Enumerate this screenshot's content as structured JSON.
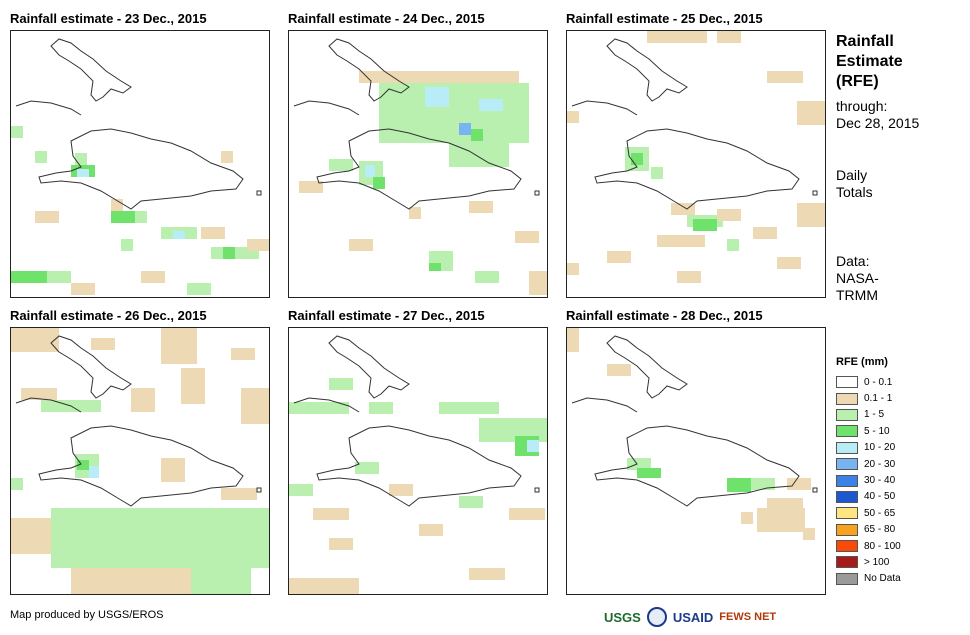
{
  "panels": [
    {
      "title": "Rainfall estimate - 23 Dec., 2015"
    },
    {
      "title": "Rainfall estimate - 24 Dec., 2015"
    },
    {
      "title": "Rainfall estimate - 25 Dec., 2015"
    },
    {
      "title": "Rainfall estimate - 26 Dec., 2015"
    },
    {
      "title": "Rainfall estimate - 27 Dec., 2015"
    },
    {
      "title": "Rainfall estimate - 28 Dec., 2015"
    }
  ],
  "side": {
    "title_lines": [
      "Rainfall",
      "Estimate",
      "(RFE)"
    ],
    "through_lines": [
      "through:",
      "Dec 28, 2015"
    ],
    "totals_lines": [
      "Daily",
      "Totals"
    ],
    "source_lines": [
      "Data:",
      "NASA-",
      "TRMM"
    ]
  },
  "legend": {
    "title": "RFE (mm)",
    "items": [
      {
        "label": "0 - 0.1",
        "color": "#ffffff"
      },
      {
        "label": "0.1 - 1",
        "color": "#eed9b5"
      },
      {
        "label": "1 - 5",
        "color": "#b9f0b0"
      },
      {
        "label": "5 - 10",
        "color": "#6ee26a"
      },
      {
        "label": "10 - 20",
        "color": "#b8ecf6"
      },
      {
        "label": "20 - 30",
        "color": "#78b4f2"
      },
      {
        "label": "30 - 40",
        "color": "#3c82e6"
      },
      {
        "label": "40 - 50",
        "color": "#1c58d0"
      },
      {
        "label": "50 - 65",
        "color": "#ffe680"
      },
      {
        "label": "65 - 80",
        "color": "#f7a320"
      },
      {
        "label": "80 - 100",
        "color": "#fa4a0a"
      },
      {
        "label": "> 100",
        "color": "#a51a1a"
      },
      {
        "label": "No Data",
        "color": "#9a9a9a"
      }
    ]
  },
  "credit": "Map produced by USGS/EROS",
  "logos": [
    "USGS",
    "USAID",
    "FEWS NET"
  ]
}
